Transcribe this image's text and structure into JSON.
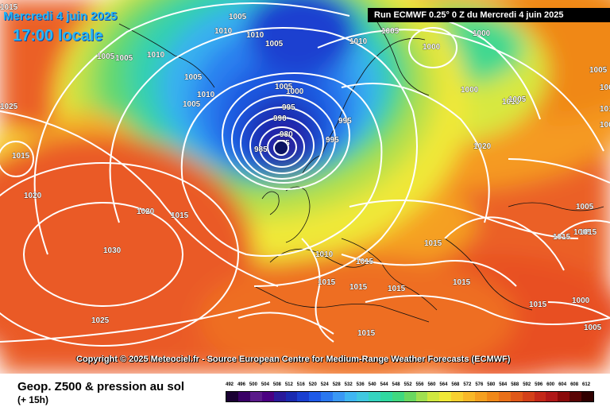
{
  "header": {
    "date": "Mercredi 4 juin 2025",
    "time": "17:00 locale",
    "run": "Run ECMWF 0.25° 0 Z du Mercredi 4 juin 2025"
  },
  "map": {
    "isobar_labels": [
      "1015",
      "1005",
      "1010",
      "1010",
      "1005",
      "1005",
      "1005",
      "1010",
      "1005",
      "1005",
      "1010",
      "1005",
      "1000",
      "995",
      "990",
      "980",
      "975",
      "985",
      "995",
      "995",
      "1000",
      "1005",
      "1010",
      "1000",
      "1000",
      "1025",
      "1015",
      "1020",
      "1020",
      "1015",
      "1030",
      "1025",
      "1010",
      "1015",
      "1015",
      "1015",
      "1015",
      "1015",
      "1015",
      "1020",
      "1015",
      "1005",
      "1010",
      "1015",
      "1005",
      "1005",
      "1000",
      "1010",
      "1005",
      "1005",
      "1000",
      "1015",
      "1005",
      "1015"
    ],
    "low_center": "L",
    "copyright": "Copyright © 2025 Meteociel.fr - Source European Centre for Medium-Range Weather Forecasts (ECMWF)"
  },
  "legend": {
    "title": "Geop. Z500 & pression au sol",
    "subtitle": "(+ 15h)",
    "scale_values": [
      "492",
      "496",
      "500",
      "504",
      "508",
      "512",
      "516",
      "520",
      "524",
      "528",
      "532",
      "536",
      "540",
      "544",
      "548",
      "552",
      "556",
      "560",
      "564",
      "568",
      "572",
      "576",
      "580",
      "584",
      "588",
      "592",
      "596",
      "600",
      "604",
      "608",
      "612"
    ],
    "scale_colors": [
      "#1a0033",
      "#3a0066",
      "#5a1a8a",
      "#4b0082",
      "#2a1a9a",
      "#1a2ab0",
      "#1a3fd0",
      "#1e5ae8",
      "#2a78f0",
      "#3a98f5",
      "#3fb6f2",
      "#40c8e0",
      "#35d4c0",
      "#30d9a0",
      "#40d880",
      "#6ad860",
      "#a0e050",
      "#d0e840",
      "#f0e838",
      "#f8d030",
      "#f8b828",
      "#f5a020",
      "#f08818",
      "#ea7018",
      "#e05818",
      "#d44018",
      "#c42818",
      "#b01818",
      "#8a0a0a",
      "#5a0505",
      "#300000"
    ],
    "colors": {
      "low_center": "#0b1260",
      "outer_ocean": "#e85a28",
      "isobar": "#ffffff"
    }
  }
}
